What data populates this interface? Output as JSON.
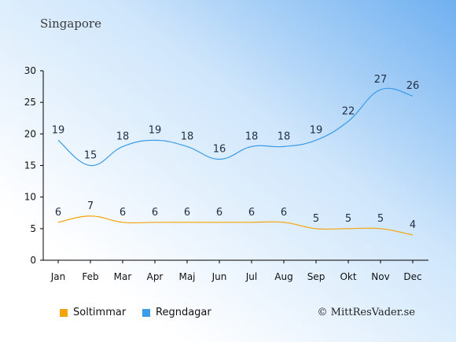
{
  "title": "Singapore",
  "credit": "© MittResVader.se",
  "colors": {
    "sun": "#f5a30a",
    "rain": "#3a9ce8"
  },
  "chart_data": {
    "type": "line",
    "categories": [
      "Jan",
      "Feb",
      "Mar",
      "Apr",
      "Maj",
      "Jun",
      "Jul",
      "Aug",
      "Sep",
      "Okt",
      "Nov",
      "Dec"
    ],
    "ylim": [
      0,
      30
    ],
    "yticks": [
      0,
      5,
      10,
      15,
      20,
      25,
      30
    ],
    "series": [
      {
        "name": "Soltimmar",
        "values": [
          6,
          7,
          6,
          6,
          6,
          6,
          6,
          6,
          5,
          5,
          5,
          4
        ]
      },
      {
        "name": "Regndagar",
        "values": [
          19,
          15,
          18,
          19,
          18,
          16,
          18,
          18,
          19,
          22,
          27,
          26
        ]
      }
    ]
  }
}
